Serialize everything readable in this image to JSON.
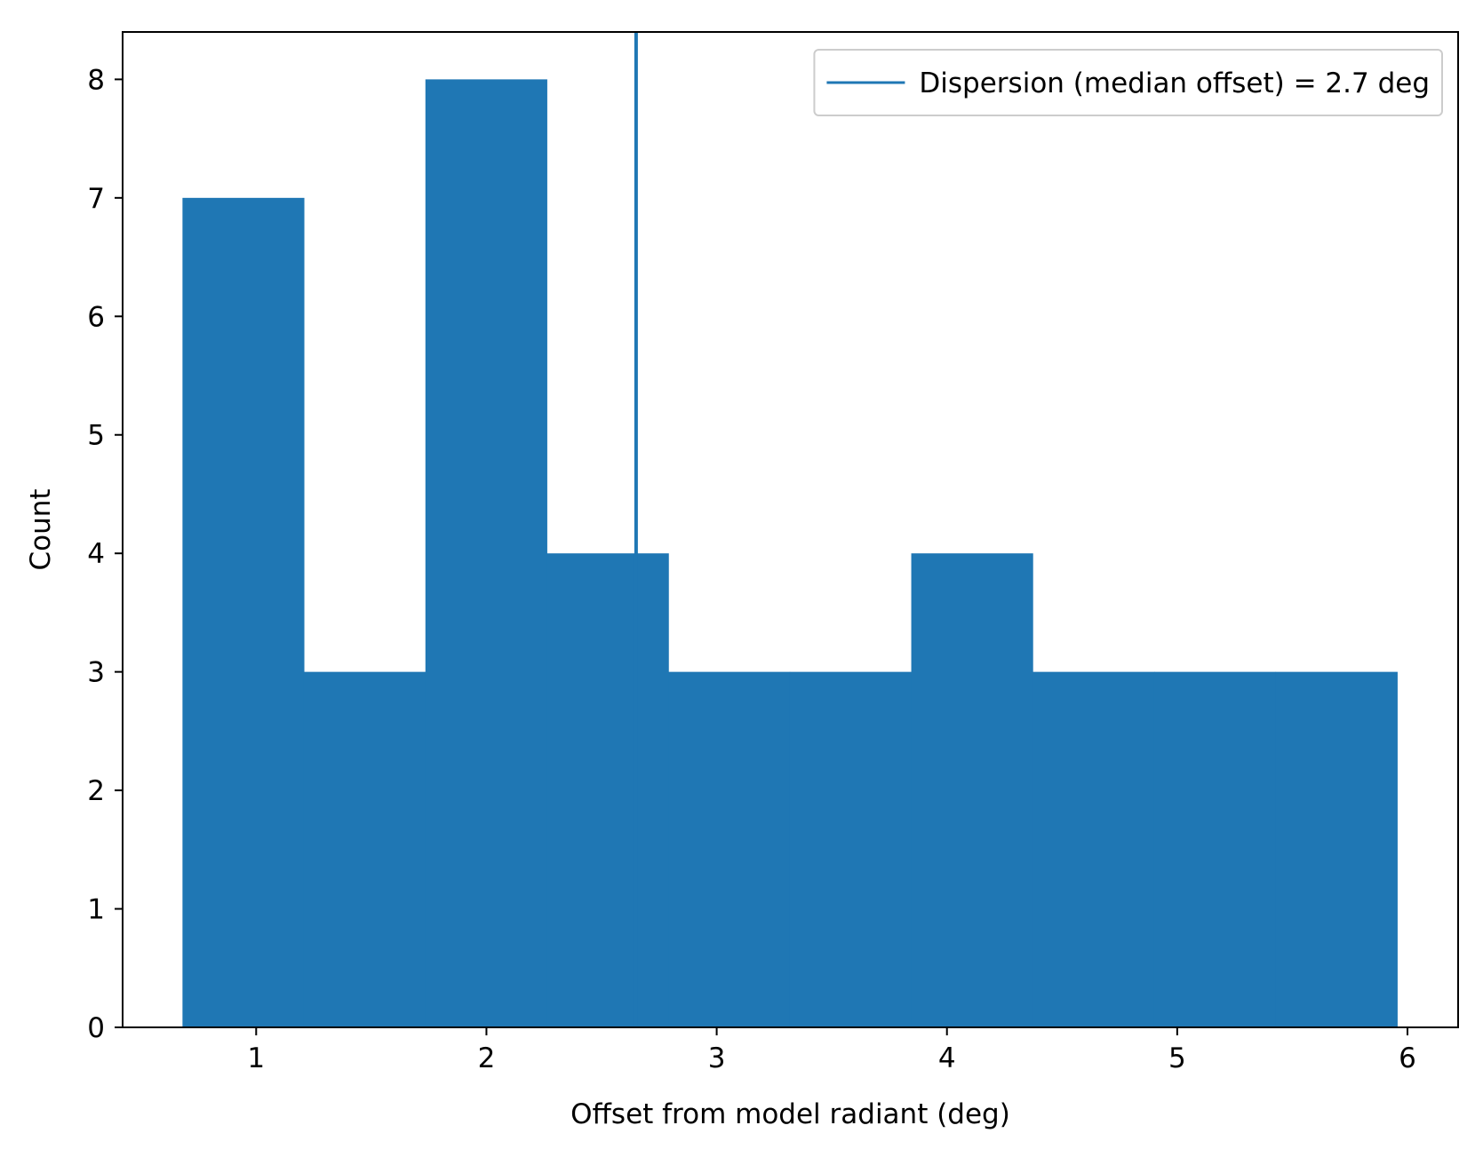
{
  "chart_data": {
    "type": "bar",
    "variant": "histogram",
    "bin_edges": [
      0.68,
      1.207,
      1.735,
      2.262,
      2.79,
      3.317,
      3.845,
      4.372,
      4.9,
      5.427,
      5.955
    ],
    "counts": [
      7,
      3,
      8,
      4,
      3,
      3,
      4,
      3,
      3,
      3
    ],
    "xlabel": "Offset from model radiant (deg)",
    "ylabel": "Count",
    "xlim": [
      0.42,
      6.22
    ],
    "ylim": [
      0,
      8.4
    ],
    "xticks": [
      1,
      2,
      3,
      4,
      5,
      6
    ],
    "yticks": [
      0,
      1,
      2,
      3,
      4,
      5,
      6,
      7,
      8
    ],
    "vline": {
      "x": 2.65,
      "label": "Dispersion (median offset) = 2.7 deg"
    },
    "legend_position": "upper-right",
    "grid": false,
    "colors": {
      "bars": "#1f77b4",
      "vline": "#1f77b4",
      "axes": "#000000"
    }
  }
}
